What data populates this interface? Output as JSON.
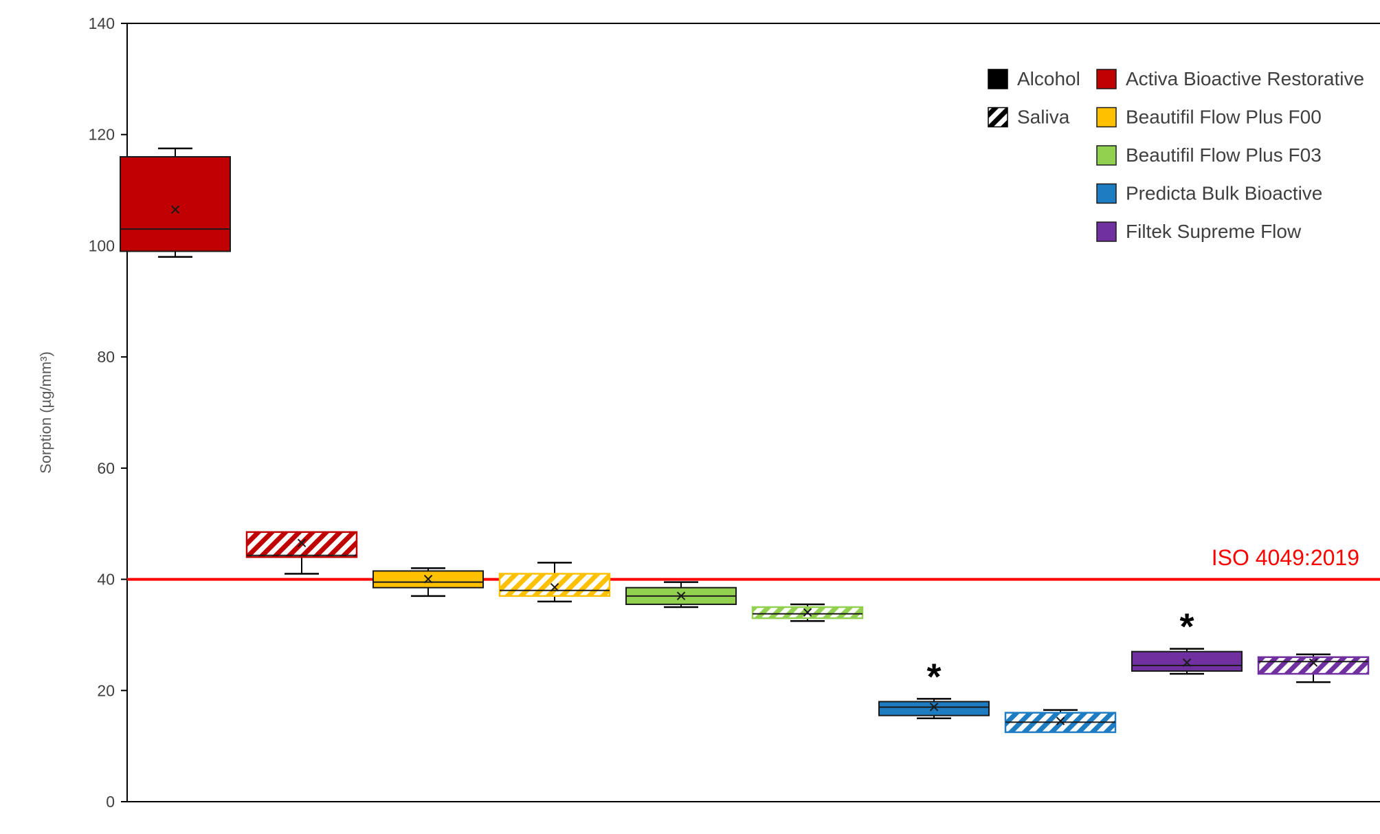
{
  "chart_data": {
    "type": "boxplot",
    "title": "",
    "ylabel": "Sorption (µg/mm³)",
    "xlabel": "",
    "ylim": [
      0,
      140
    ],
    "yticks": [
      0,
      20,
      40,
      60,
      80,
      100,
      120,
      140
    ],
    "grid": false,
    "legend_position": "top-right",
    "reference_line": {
      "value": 40,
      "label": "ISO 4049:2019",
      "color": "#FF0000"
    },
    "conditions": [
      {
        "label": "Alcohol",
        "fill": "solid"
      },
      {
        "label": "Saliva",
        "fill": "hatched"
      }
    ],
    "materials": [
      {
        "label": "Activa Bioactive Restorative",
        "color": "#C00000"
      },
      {
        "label": "Beautifil Flow Plus F00",
        "color": "#FFC000"
      },
      {
        "label": "Beautifil Flow Plus F03",
        "color": "#92D050"
      },
      {
        "label": "Predicta Bulk Bioactive",
        "color": "#1D7CC2"
      },
      {
        "label": "Filtek Supreme Flow",
        "color": "#7030A0"
      }
    ],
    "boxes": [
      {
        "material": "Activa Bioactive Restorative",
        "condition": "Alcohol",
        "color": "#C00000",
        "pattern": "solid",
        "whisker_low": 98,
        "q1": 99,
        "median": 103,
        "mean": 106.5,
        "q3": 116,
        "whisker_high": 117.5,
        "significance": ""
      },
      {
        "material": "Activa Bioactive Restorative",
        "condition": "Saliva",
        "color": "#C00000",
        "pattern": "hatched",
        "whisker_low": 41,
        "q1": 44,
        "median": 44.3,
        "mean": 46.5,
        "q3": 48.5,
        "whisker_high": 48.5,
        "significance": ""
      },
      {
        "material": "Beautifil Flow Plus F00",
        "condition": "Alcohol",
        "color": "#FFC000",
        "pattern": "solid",
        "whisker_low": 37,
        "q1": 38.5,
        "median": 39.5,
        "mean": 40,
        "q3": 41.5,
        "whisker_high": 42,
        "significance": ""
      },
      {
        "material": "Beautifil Flow Plus F00",
        "condition": "Saliva",
        "color": "#FFC000",
        "pattern": "hatched",
        "whisker_low": 36,
        "q1": 37,
        "median": 38,
        "mean": 38.5,
        "q3": 41,
        "whisker_high": 43,
        "significance": ""
      },
      {
        "material": "Beautifil Flow Plus F03",
        "condition": "Alcohol",
        "color": "#92D050",
        "pattern": "solid",
        "whisker_low": 35,
        "q1": 35.5,
        "median": 37,
        "mean": 37,
        "q3": 38.5,
        "whisker_high": 39.5,
        "significance": ""
      },
      {
        "material": "Beautifil Flow Plus F03",
        "condition": "Saliva",
        "color": "#92D050",
        "pattern": "hatched",
        "whisker_low": 32.5,
        "q1": 33,
        "median": 33.8,
        "mean": 34,
        "q3": 35,
        "whisker_high": 35.5,
        "significance": ""
      },
      {
        "material": "Predicta Bulk Bioactive",
        "condition": "Alcohol",
        "color": "#1D7CC2",
        "pattern": "solid",
        "whisker_low": 15,
        "q1": 15.5,
        "median": 17,
        "mean": 17,
        "q3": 18,
        "whisker_high": 18.5,
        "significance": "*"
      },
      {
        "material": "Predicta Bulk Bioactive",
        "condition": "Saliva",
        "color": "#1D7CC2",
        "pattern": "hatched",
        "whisker_low": 12.5,
        "q1": 12.5,
        "median": 14.3,
        "mean": 14.5,
        "q3": 16,
        "whisker_high": 16.5,
        "significance": ""
      },
      {
        "material": "Filtek Supreme Flow",
        "condition": "Alcohol",
        "color": "#7030A0",
        "pattern": "solid",
        "whisker_low": 23,
        "q1": 23.5,
        "median": 24.5,
        "mean": 25,
        "q3": 27,
        "whisker_high": 27.5,
        "significance": "*"
      },
      {
        "material": "Filtek Supreme Flow",
        "condition": "Saliva",
        "color": "#7030A0",
        "pattern": "hatched",
        "whisker_low": 21.5,
        "q1": 23,
        "median": 25.2,
        "mean": 25,
        "q3": 26,
        "whisker_high": 26.5,
        "significance": ""
      }
    ]
  }
}
